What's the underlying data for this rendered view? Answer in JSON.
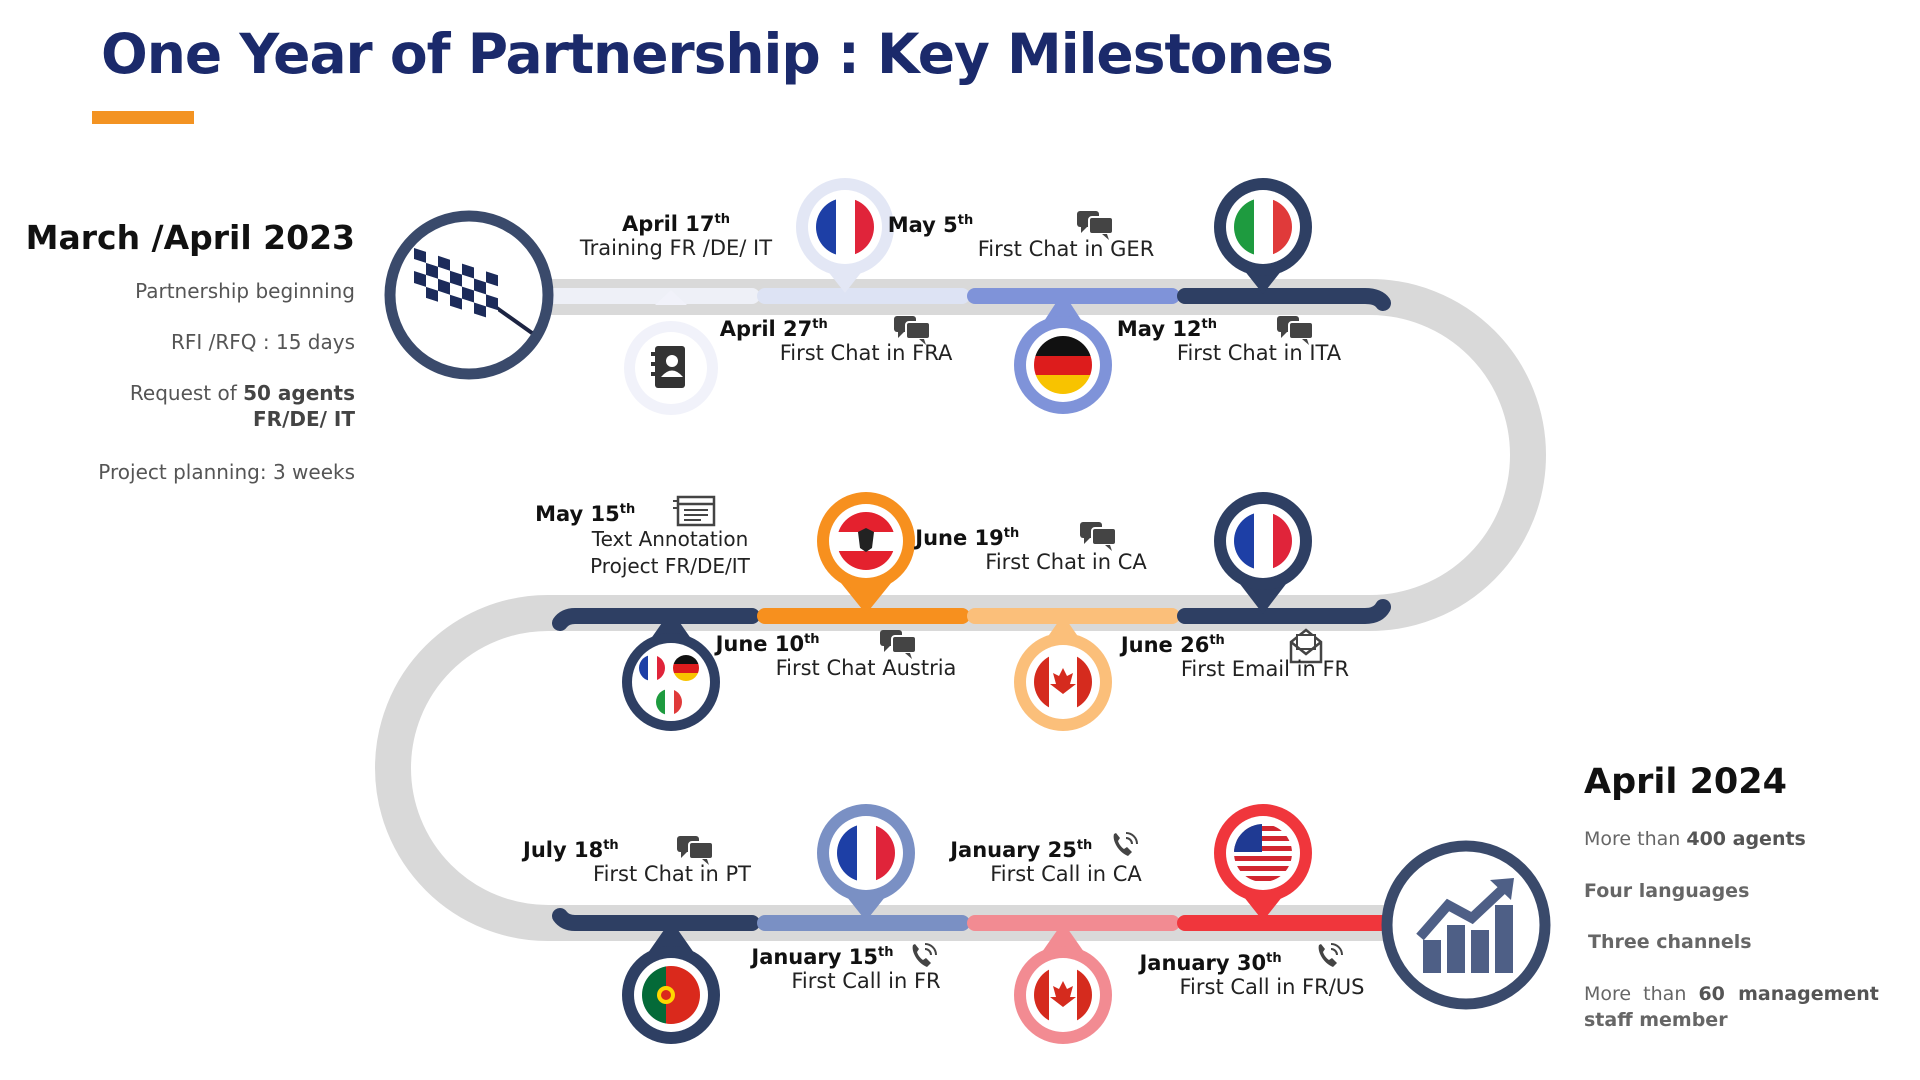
{
  "title": "One Year of Partnership : Key Milestones",
  "start": {
    "date": "March /April 2023",
    "items": {
      "beginning": "Partnership beginning",
      "rfi": "RFI /RFQ : 15 days",
      "request_pre": "Request of ",
      "request_bold": "50 agents",
      "request_langs": "FR/DE/ IT",
      "planning": "Project planning: 3 weeks"
    }
  },
  "end": {
    "date": "April 2024",
    "agents_pre": "More than ",
    "agents_bold": "400 agents",
    "languages": "Four languages",
    "channels": "Three channels",
    "staff_pre": "More  than  ",
    "staff_num": "60",
    "staff_post": "  management",
    "staff_line2": "staff member"
  },
  "milestones": [
    {
      "day": "April 17",
      "suffix": "th",
      "text": "Training FR /DE/ IT",
      "icon": "contact-book-icon"
    },
    {
      "day": "April 27",
      "suffix": "th",
      "text": "First Chat in FRA",
      "icon": "chat-icon",
      "flag": "france"
    },
    {
      "day": "May 5",
      "suffix": "th",
      "text": "First Chat in GER",
      "icon": "chat-icon",
      "flag": "germany"
    },
    {
      "day": "May 12",
      "suffix": "th",
      "text": "First Chat in ITA",
      "icon": "chat-icon",
      "flag": "italy"
    },
    {
      "day": "May 15",
      "suffix": "th",
      "text_line1": "Text Annotation",
      "text_line2": "Project FR/DE/IT",
      "icon": "document-icon",
      "flag": "fr-de-it"
    },
    {
      "day": "June 10",
      "suffix": "th",
      "text": "First Chat Austria",
      "icon": "chat-icon",
      "flag": "austria"
    },
    {
      "day": "June 19",
      "suffix": "th",
      "text": "First Chat in CA",
      "icon": "chat-icon",
      "flag": "canada"
    },
    {
      "day": "June 26",
      "suffix": "th",
      "text": "First Email in FR",
      "icon": "email-icon",
      "flag": "france"
    },
    {
      "day": "July 18",
      "suffix": "th",
      "text": "First Chat in PT",
      "icon": "chat-icon",
      "flag": "portugal"
    },
    {
      "day": "January 15",
      "suffix": "th",
      "text": "First Call in FR",
      "icon": "phone-icon",
      "flag": "france"
    },
    {
      "day": "January 25",
      "suffix": "th",
      "text": "First Call in CA",
      "icon": "phone-icon",
      "flag": "canada"
    },
    {
      "day": "January 30",
      "suffix": "th",
      "text": "First Call in FR/US",
      "icon": "phone-icon",
      "flag": "usa"
    }
  ],
  "colors": {
    "title": "#1b2a6b",
    "accent": "#f39322",
    "navy": "#2e3f63",
    "road": "#d9d9d9",
    "periwinkle": "#7f93d9",
    "orange": "#f7901e",
    "peach": "#fbbf7a",
    "pink": "#f28b92",
    "red": "#f0363c",
    "slate": "#7a90c4"
  }
}
